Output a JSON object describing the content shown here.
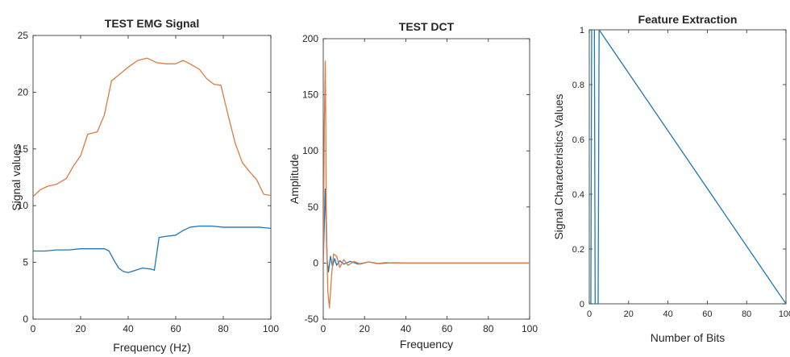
{
  "colors": {
    "blue": "#1f77b4",
    "orange": "#e07a40",
    "axis": "#262626"
  },
  "chart_data": [
    {
      "type": "line",
      "title": "TEST EMG Signal",
      "xlabel": "Frequency (Hz)",
      "ylabel": "Signal values",
      "xlim": [
        0,
        100
      ],
      "ylim": [
        0,
        25
      ],
      "xticks": [
        "0",
        "20",
        "40",
        "60",
        "80",
        "100"
      ],
      "yticks": [
        "0",
        "5",
        "10",
        "15",
        "20",
        "25"
      ],
      "grid": false,
      "series": [
        {
          "color": "orange",
          "x": [
            0,
            3,
            6,
            10,
            14,
            17,
            20,
            23,
            27,
            30,
            33,
            36,
            40,
            44,
            48,
            52,
            56,
            60,
            63,
            66,
            70,
            73,
            76,
            79,
            82,
            85,
            88,
            91,
            94,
            97,
            100
          ],
          "y": [
            10.8,
            11.4,
            11.7,
            11.9,
            12.4,
            13.5,
            14.4,
            16.3,
            16.5,
            18.0,
            21.0,
            21.5,
            22.2,
            22.8,
            23.0,
            22.6,
            22.5,
            22.5,
            22.8,
            22.5,
            22.0,
            21.2,
            20.7,
            20.6,
            18.0,
            15.5,
            13.8,
            13.0,
            12.3,
            11.0,
            10.9
          ]
        },
        {
          "color": "blue",
          "x": [
            0,
            5,
            10,
            15,
            20,
            25,
            30,
            32,
            34,
            36,
            38,
            40,
            43,
            46,
            50,
            51,
            53,
            56,
            60,
            63,
            66,
            70,
            75,
            80,
            85,
            90,
            95,
            100
          ],
          "y": [
            6.0,
            6.0,
            6.1,
            6.1,
            6.2,
            6.2,
            6.2,
            6.0,
            5.2,
            4.5,
            4.2,
            4.1,
            4.3,
            4.5,
            4.4,
            4.3,
            7.2,
            7.3,
            7.4,
            7.8,
            8.1,
            8.2,
            8.2,
            8.1,
            8.1,
            8.1,
            8.1,
            8.0
          ]
        }
      ]
    },
    {
      "type": "line",
      "title": "TEST DCT",
      "xlabel": "Frequency",
      "ylabel": "Amplitude",
      "xlim": [
        0,
        100
      ],
      "ylim": [
        -50,
        200
      ],
      "xticks": [
        "0",
        "20",
        "40",
        "60",
        "80",
        "100"
      ],
      "yticks": [
        "-50",
        "0",
        "50",
        "100",
        "150",
        "200"
      ],
      "grid": false,
      "series": [
        {
          "color": "blue",
          "x": [
            0,
            1,
            1.8,
            2.5,
            3.5,
            4.5,
            5.5,
            6.5,
            8,
            10,
            13,
            17,
            22,
            27,
            33,
            40,
            100
          ],
          "y": [
            0,
            66,
            5,
            -8,
            6,
            -3,
            4,
            -2,
            2,
            -1,
            1.5,
            -1,
            1,
            -0.5,
            0.3,
            0,
            0
          ]
        },
        {
          "color": "orange",
          "x": [
            0,
            0.5,
            1,
            1.5,
            2.2,
            3,
            4,
            5,
            6.5,
            8,
            10,
            12,
            15,
            18,
            22,
            26,
            30,
            35,
            40,
            100
          ],
          "y": [
            0,
            120,
            180,
            40,
            -25,
            -40,
            -12,
            8,
            6,
            -4,
            3,
            -2,
            1.5,
            -1,
            1,
            -0.5,
            0.4,
            0,
            0,
            0
          ]
        }
      ]
    },
    {
      "type": "line",
      "title": "Feature Extraction",
      "xlabel": "Number of Bits",
      "ylabel": "Signal Characteristics Values",
      "xlim": [
        0,
        100
      ],
      "ylim": [
        0,
        1
      ],
      "xticks": [
        "0",
        "20",
        "40",
        "60",
        "80",
        "100"
      ],
      "yticks": [
        "0",
        "0.2",
        "0.4",
        "0.6",
        "0.8",
        "1"
      ],
      "grid": false,
      "series": [
        {
          "color": "blue",
          "x": [
            0,
            0.8,
            1.2,
            2.6,
            3.0,
            4.5,
            5.0,
            100
          ],
          "y": [
            0,
            0,
            1,
            1,
            0,
            0,
            1,
            0
          ]
        }
      ]
    }
  ]
}
